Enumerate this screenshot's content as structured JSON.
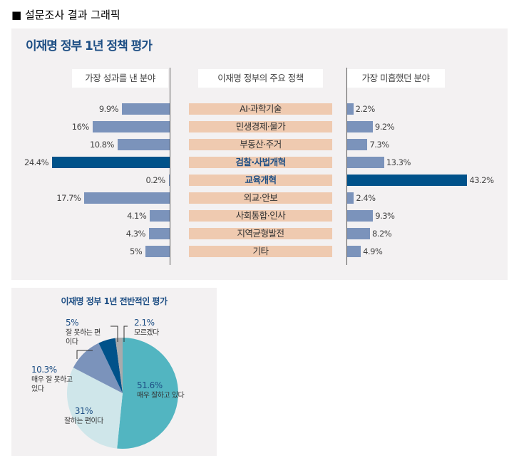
{
  "header": "■ 설문조사 결과 그래픽",
  "chart_data": [
    {
      "type": "bar",
      "title": "이재명 정부 1년 정책 평가",
      "column_headers": {
        "left": "가장 성과를 낸 분야",
        "center": "이재명 정부의 주요 정책",
        "right": "가장 미흡했던 분야"
      },
      "categories": [
        "AI·과학기술",
        "민생경제·물가",
        "부동산·주거",
        "검찰·사법개혁",
        "교육개혁",
        "외교·안보",
        "사회통합·인사",
        "지역균형발전",
        "기타"
      ],
      "highlighted": [
        "검찰·사법개혁",
        "교육개혁"
      ],
      "series": [
        {
          "name": "가장 성과를 낸 분야",
          "values": [
            9.9,
            16,
            10.8,
            24.4,
            0.2,
            17.7,
            4.1,
            4.3,
            5
          ],
          "labels": [
            "9.9%",
            "16%",
            "10.8%",
            "24.4%",
            "0.2%",
            "17.7%",
            "4.1%",
            "4.3%",
            "5%"
          ]
        },
        {
          "name": "가장 미흡했던 분야",
          "values": [
            2.2,
            9.2,
            7.3,
            13.3,
            43.2,
            2.4,
            9.3,
            8.2,
            4.9
          ],
          "labels": [
            "2.2%",
            "9.2%",
            "7.3%",
            "13.3%",
            "43.2%",
            "2.4%",
            "9.3%",
            "8.2%",
            "4.9%"
          ]
        }
      ],
      "colors": {
        "bar": "#7b93bb",
        "highlight": "#00528a",
        "label_bg": "#efcab0",
        "background": "#f3f1f2"
      }
    },
    {
      "type": "pie",
      "title": "이재명 정부 1년 전반적인 평가",
      "slices": [
        {
          "label": "매우 잘하고 있다",
          "value": 51.6,
          "text": "51.6%",
          "color": "#52b5c1"
        },
        {
          "label": "잘하는 편이다",
          "value": 31,
          "text": "31%",
          "color": "#cfe6ea"
        },
        {
          "label": "매우 잘 못하고 있다",
          "value": 10.3,
          "text": "10.3%",
          "color": "#7b93bb"
        },
        {
          "label": "잘 못하는 편이다",
          "value": 5,
          "text": "5%",
          "color": "#00528a"
        },
        {
          "label": "모르겠다",
          "value": 2.1,
          "text": "2.1%",
          "color": "#a9aaac"
        }
      ]
    }
  ]
}
